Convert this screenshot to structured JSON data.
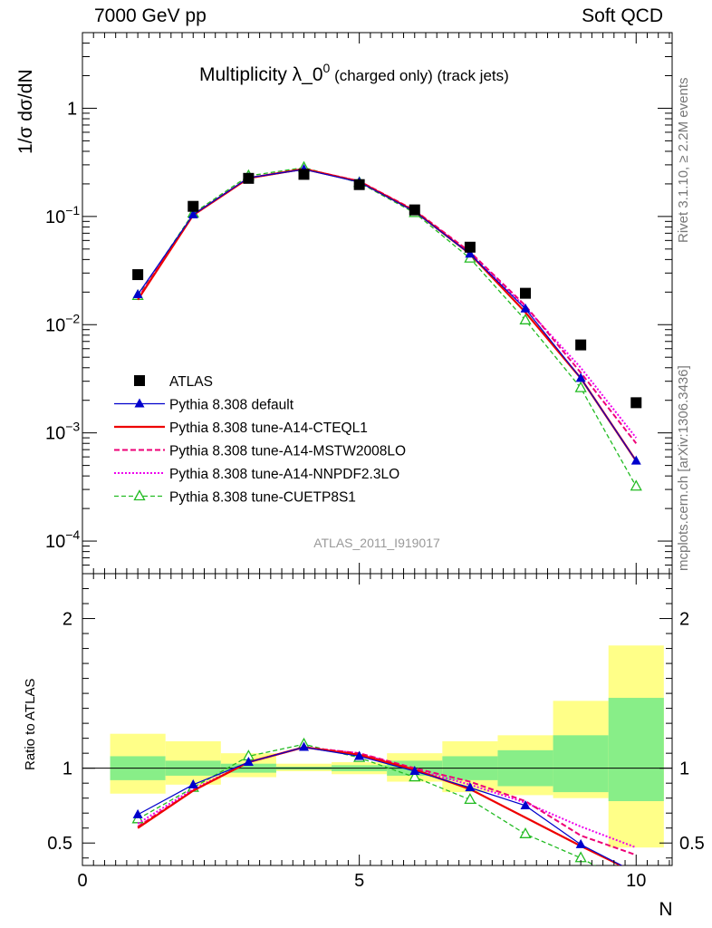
{
  "header": {
    "left": "7000 GeV pp",
    "right": "Soft QCD",
    "side_top": "Rivet 3.1.10, ≥ 2.2M events",
    "side_bottom": "mcplots.cern.ch [arXiv:1306.3436]",
    "watermark": "ATLAS_2011_I919017"
  },
  "chart_data": [
    {
      "type": "scatter",
      "panel": "main",
      "title": "Multiplicity λ_0",
      "title_sup": "0",
      "title_suffix": " (charged only) (track jets)",
      "ylabel": "1/σ dσ/dN",
      "yscale": "log",
      "ylim": [
        5e-05,
        5
      ],
      "xlim": [
        0,
        10.65
      ],
      "ytick_labels": [
        {
          "v": 1,
          "label": "1"
        },
        {
          "v": 0.1,
          "label": "10",
          "sup": "−1"
        },
        {
          "v": 0.01,
          "label": "10",
          "sup": "−2"
        },
        {
          "v": 0.001,
          "label": "10",
          "sup": "−3"
        },
        {
          "v": 0.0001,
          "label": "10",
          "sup": "−4"
        }
      ],
      "legend_position": "lower-left",
      "x": [
        1,
        2,
        3,
        4,
        5,
        6,
        7,
        8,
        9,
        10
      ],
      "series": [
        {
          "name": "ATLAS",
          "color": "#000000",
          "style": "data",
          "values": [
            0.029,
            0.124,
            0.225,
            0.245,
            0.197,
            0.115,
            0.052,
            0.0195,
            0.0065,
            0.0019
          ]
        },
        {
          "name": "Pythia 8.308 default",
          "color": "#0000cc",
          "style": "solid-thin",
          "marker": "triangle-filled",
          "values": [
            0.019,
            0.104,
            0.228,
            0.272,
            0.208,
            0.111,
            0.045,
            0.014,
            0.0032,
            0.00055
          ]
        },
        {
          "name": "Pythia 8.308 tune-A14-CTEQL1",
          "color": "#ee0000",
          "style": "solid-thick",
          "values": [
            0.017,
            0.103,
            0.226,
            0.275,
            0.21,
            0.112,
            0.045,
            0.013,
            0.0032,
            0.00055
          ]
        },
        {
          "name": "Pythia 8.308 tune-A14-MSTW2008LO",
          "color": "#ee0077",
          "style": "dashed",
          "values": [
            0.0175,
            0.103,
            0.226,
            0.275,
            0.212,
            0.114,
            0.047,
            0.015,
            0.0036,
            0.0008
          ]
        },
        {
          "name": "Pythia 8.308 tune-A14-NNPDF2.3LO",
          "color": "#ee00ee",
          "style": "dotted",
          "values": [
            0.0175,
            0.103,
            0.226,
            0.275,
            0.212,
            0.113,
            0.046,
            0.0145,
            0.004,
            0.0009
          ]
        },
        {
          "name": "Pythia 8.308 tune-CUETP8S1",
          "color": "#22bb22",
          "style": "dashed-green",
          "marker": "triangle-open",
          "values": [
            0.0185,
            0.107,
            0.237,
            0.283,
            0.205,
            0.108,
            0.041,
            0.011,
            0.0026,
            0.00032
          ]
        }
      ]
    },
    {
      "type": "line",
      "panel": "ratio",
      "ylabel": "Ratio to ATLAS",
      "xlabel": "N",
      "ylim": [
        0.35,
        2.3
      ],
      "xlim": [
        0,
        10.65
      ],
      "xticks": [
        0,
        5,
        10
      ],
      "yticks": [
        0.5,
        1,
        2
      ],
      "bands": [
        {
          "x": 1,
          "green": [
            0.92,
            1.08
          ],
          "yellow": [
            0.83,
            1.23
          ]
        },
        {
          "x": 2,
          "green": [
            0.95,
            1.05
          ],
          "yellow": [
            0.89,
            1.18
          ]
        },
        {
          "x": 3,
          "green": [
            0.97,
            1.03
          ],
          "yellow": [
            0.94,
            1.1
          ]
        },
        {
          "x": 4,
          "green": [
            0.99,
            1.01
          ],
          "yellow": [
            0.98,
            1.03
          ]
        },
        {
          "x": 5,
          "green": [
            0.98,
            1.02
          ],
          "yellow": [
            0.96,
            1.04
          ]
        },
        {
          "x": 6,
          "green": [
            0.95,
            1.05
          ],
          "yellow": [
            0.91,
            1.1
          ]
        },
        {
          "x": 7,
          "green": [
            0.92,
            1.08
          ],
          "yellow": [
            0.84,
            1.18
          ]
        },
        {
          "x": 8,
          "green": [
            0.88,
            1.12
          ],
          "yellow": [
            0.82,
            1.22
          ]
        },
        {
          "x": 9,
          "green": [
            0.84,
            1.22
          ],
          "yellow": [
            0.8,
            1.45
          ]
        },
        {
          "x": 10,
          "green": [
            0.78,
            1.47
          ],
          "yellow": [
            0.47,
            1.82
          ]
        }
      ],
      "series": [
        {
          "name": "Pythia 8.308 default",
          "color": "#0000cc",
          "values": [
            0.69,
            0.89,
            1.04,
            1.14,
            1.08,
            0.98,
            0.87,
            0.75,
            0.49,
            0.3
          ]
        },
        {
          "name": "Pythia 8.308 tune-A14-CTEQL1",
          "color": "#ee0000",
          "values": [
            0.6,
            0.85,
            1.04,
            1.14,
            1.09,
            0.99,
            0.86,
            0.67,
            0.48,
            0.3
          ]
        },
        {
          "name": "Pythia 8.308 tune-A14-MSTW2008LO",
          "color": "#ee0077",
          "values": [
            0.61,
            0.85,
            1.04,
            1.14,
            1.1,
            1.0,
            0.91,
            0.78,
            0.55,
            0.42
          ]
        },
        {
          "name": "Pythia 8.308 tune-A14-NNPDF2.3LO",
          "color": "#ee00ee",
          "values": [
            0.63,
            0.86,
            1.04,
            1.14,
            1.1,
            0.99,
            0.89,
            0.77,
            0.61,
            0.47
          ]
        },
        {
          "name": "Pythia 8.308 tune-CUETP8S1",
          "color": "#22bb22",
          "values": [
            0.66,
            0.87,
            1.08,
            1.16,
            1.07,
            0.94,
            0.79,
            0.56,
            0.4,
            0.2
          ]
        }
      ]
    }
  ]
}
